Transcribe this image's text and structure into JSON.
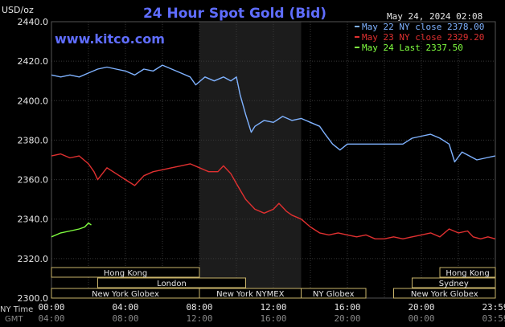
{
  "header": {
    "unit": "USD/oz",
    "title": "24 Hour Spot Gold (Bid)",
    "timestamp": "May 24, 2024 02:08",
    "website": "www.kitco.com"
  },
  "legend": [
    {
      "label": "May 22 NY close 2378.00",
      "color": "#7fb2ff"
    },
    {
      "label": "May 23 NY close 2329.20",
      "color": "#e03030"
    },
    {
      "label": "May 24 Last 2337.50",
      "color": "#80ff40"
    }
  ],
  "sessions": [
    {
      "label": "Hong Kong",
      "row": 0,
      "start": 0.0,
      "end": 8.0
    },
    {
      "label": "Hong Kong",
      "row": 0,
      "start": 21.0,
      "end": 24.0
    },
    {
      "label": "London",
      "row": 1,
      "start": 2.5,
      "end": 10.5
    },
    {
      "label": "Sydney",
      "row": 1,
      "start": 19.5,
      "end": 24.0
    },
    {
      "label": "New York Globex",
      "row": 2,
      "start": 0.0,
      "end": 8.0
    },
    {
      "label": "New York NYMEX",
      "row": 2,
      "start": 8.0,
      "end": 13.5
    },
    {
      "label": "NY Globex",
      "row": 2,
      "start": 13.5,
      "end": 17.0
    },
    {
      "label": "New York Globex",
      "row": 2,
      "start": 18.5,
      "end": 24.0
    }
  ],
  "axis": {
    "ny_label": "NY Time",
    "gmt_label": "GMT",
    "x_ticks": [
      "00:00",
      "04:00",
      "08:00",
      "12:00",
      "16:00",
      "20:00",
      "23:59"
    ],
    "gmt_ticks": [
      "04:00",
      "08:00",
      "12:00",
      "16:00",
      "20:00",
      "00:00",
      "03:59"
    ]
  },
  "chart_data": {
    "type": "line",
    "title": "24 Hour Spot Gold (Bid)",
    "ylabel": "USD/oz",
    "xlabel": "NY Time",
    "xlim": [
      0,
      24
    ],
    "ylim": [
      2300,
      2440
    ],
    "y_ticks": [
      2300,
      2320,
      2340,
      2360,
      2380,
      2400,
      2420,
      2440
    ],
    "grid": true,
    "legend_position": "top-right",
    "highlight_range": [
      8.0,
      13.5
    ],
    "series": [
      {
        "name": "May 22 NY close 2378.00",
        "color": "#7fb2ff",
        "points": [
          [
            0,
            2413
          ],
          [
            0.5,
            2412
          ],
          [
            1,
            2413
          ],
          [
            1.5,
            2412
          ],
          [
            2,
            2414
          ],
          [
            2.5,
            2416
          ],
          [
            3,
            2417
          ],
          [
            3.5,
            2416
          ],
          [
            4,
            2415
          ],
          [
            4.5,
            2413
          ],
          [
            5,
            2416
          ],
          [
            5.5,
            2415
          ],
          [
            6,
            2418
          ],
          [
            6.5,
            2416
          ],
          [
            7,
            2414
          ],
          [
            7.5,
            2412
          ],
          [
            7.8,
            2408
          ],
          [
            8.3,
            2412
          ],
          [
            8.8,
            2410
          ],
          [
            9.3,
            2412
          ],
          [
            9.7,
            2410
          ],
          [
            10,
            2412
          ],
          [
            10.2,
            2403
          ],
          [
            10.5,
            2393
          ],
          [
            10.8,
            2384
          ],
          [
            11,
            2387
          ],
          [
            11.5,
            2390
          ],
          [
            12,
            2389
          ],
          [
            12.5,
            2392
          ],
          [
            13,
            2390
          ],
          [
            13.5,
            2391
          ],
          [
            14,
            2389
          ],
          [
            14.5,
            2387
          ],
          [
            14.8,
            2383
          ],
          [
            15.2,
            2378
          ],
          [
            15.6,
            2375
          ],
          [
            16,
            2378
          ],
          [
            17,
            2378
          ],
          [
            18,
            2378
          ],
          [
            19,
            2378
          ],
          [
            19.5,
            2381
          ],
          [
            20,
            2382
          ],
          [
            20.5,
            2383
          ],
          [
            21,
            2381
          ],
          [
            21.5,
            2378
          ],
          [
            21.8,
            2369
          ],
          [
            22.2,
            2374
          ],
          [
            22.6,
            2372
          ],
          [
            23,
            2370
          ],
          [
            23.5,
            2371
          ],
          [
            23.99,
            2372
          ]
        ]
      },
      {
        "name": "May 23 NY close 2329.20",
        "color": "#e03030",
        "points": [
          [
            0,
            2372
          ],
          [
            0.5,
            2373
          ],
          [
            1,
            2371
          ],
          [
            1.5,
            2372
          ],
          [
            2,
            2368
          ],
          [
            2.3,
            2364
          ],
          [
            2.5,
            2360
          ],
          [
            3,
            2366
          ],
          [
            3.5,
            2363
          ],
          [
            4,
            2360
          ],
          [
            4.5,
            2357
          ],
          [
            5,
            2362
          ],
          [
            5.5,
            2364
          ],
          [
            6,
            2365
          ],
          [
            6.5,
            2366
          ],
          [
            7,
            2367
          ],
          [
            7.5,
            2368
          ],
          [
            8,
            2366
          ],
          [
            8.5,
            2364
          ],
          [
            9,
            2364
          ],
          [
            9.3,
            2367
          ],
          [
            9.7,
            2363
          ],
          [
            10,
            2358
          ],
          [
            10.5,
            2350
          ],
          [
            11,
            2345
          ],
          [
            11.5,
            2343
          ],
          [
            12,
            2345
          ],
          [
            12.3,
            2348
          ],
          [
            12.7,
            2344
          ],
          [
            13,
            2342
          ],
          [
            13.5,
            2340
          ],
          [
            14,
            2336
          ],
          [
            14.5,
            2333
          ],
          [
            15,
            2332
          ],
          [
            15.5,
            2333
          ],
          [
            16,
            2332
          ],
          [
            16.5,
            2331
          ],
          [
            17,
            2332
          ],
          [
            17.5,
            2330
          ],
          [
            18,
            2330
          ],
          [
            18.5,
            2331
          ],
          [
            19,
            2330
          ],
          [
            19.5,
            2331
          ],
          [
            20,
            2332
          ],
          [
            20.5,
            2333
          ],
          [
            21,
            2331
          ],
          [
            21.5,
            2335
          ],
          [
            22,
            2333
          ],
          [
            22.5,
            2334
          ],
          [
            22.8,
            2331
          ],
          [
            23.2,
            2330
          ],
          [
            23.6,
            2331
          ],
          [
            23.99,
            2330
          ]
        ]
      },
      {
        "name": "May 24 Last 2337.50",
        "color": "#80ff40",
        "points": [
          [
            0,
            2331
          ],
          [
            0.5,
            2333
          ],
          [
            1,
            2334
          ],
          [
            1.5,
            2335
          ],
          [
            1.8,
            2336
          ],
          [
            2,
            2338
          ],
          [
            2.15,
            2337
          ]
        ]
      }
    ]
  }
}
